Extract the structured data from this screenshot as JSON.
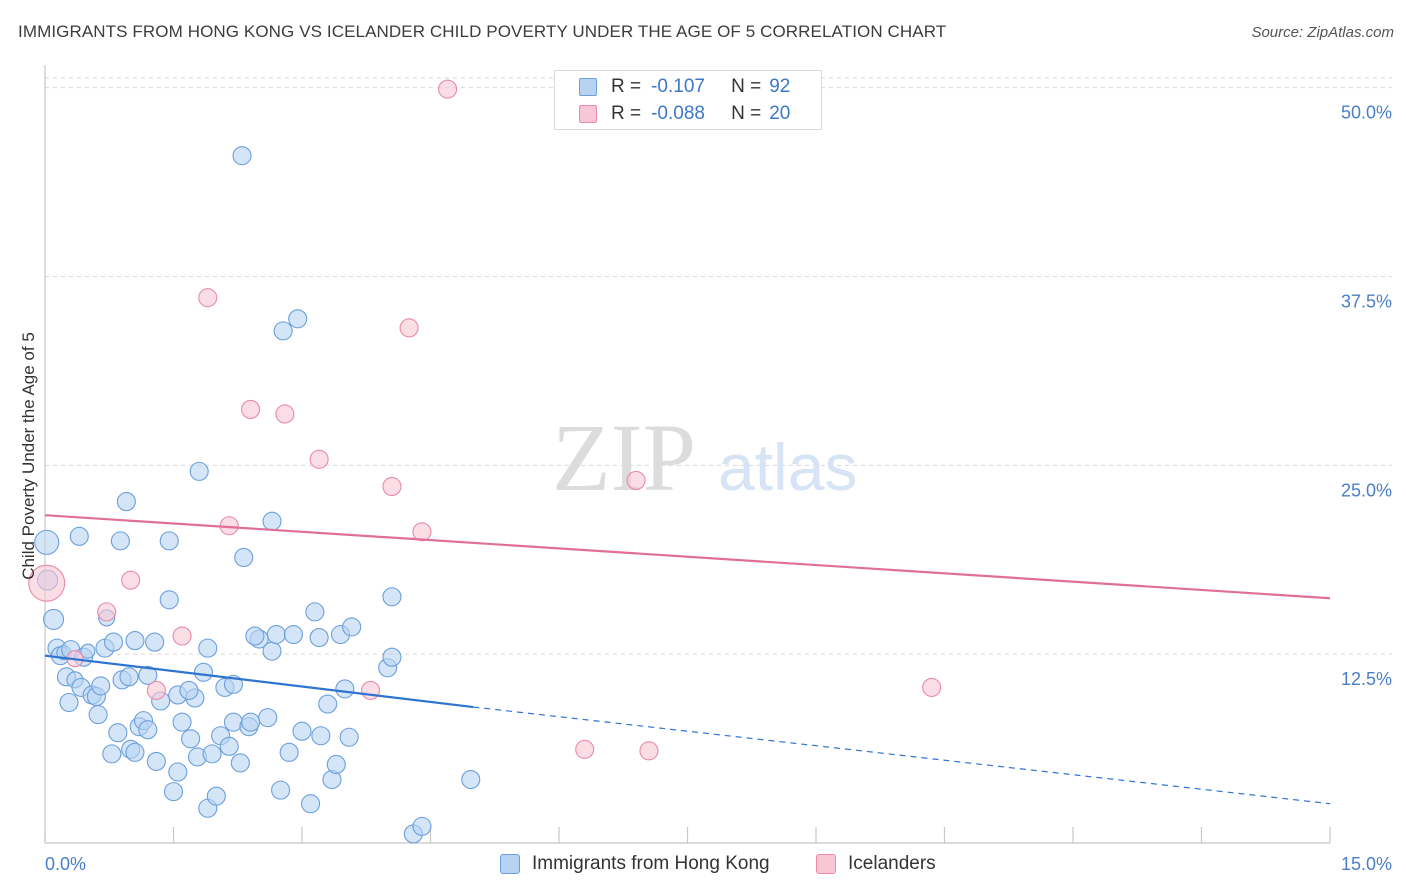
{
  "title": "IMMIGRANTS FROM HONG KONG VS ICELANDER CHILD POVERTY UNDER THE AGE OF 5 CORRELATION CHART",
  "source": "Source: ZipAtlas.com",
  "watermark": {
    "zip": "ZIP",
    "atlas": "atlas"
  },
  "legend": {
    "rows": [
      {
        "r_label": "R =",
        "r_value": "-0.107",
        "n_label": "N =",
        "n_value": "92"
      },
      {
        "r_label": "R =",
        "r_value": "-0.088",
        "n_label": "N =",
        "n_value": "20"
      }
    ]
  },
  "bottom_legend": {
    "series1": "Immigrants from Hong Kong",
    "series2": "Icelanders"
  },
  "colors": {
    "blue_fill": "#b8d3f2",
    "blue_stroke": "#6b9fdc",
    "blue_line": "#2f74d0",
    "pink_fill": "#f8c7d5",
    "pink_stroke": "#e98aa8",
    "pink_line": "#e06f98",
    "accent_text": "#4a7fc8"
  },
  "chart_data": {
    "type": "scatter",
    "title": "IMMIGRANTS FROM HONG KONG VS ICELANDER CHILD POVERTY UNDER THE AGE OF 5 CORRELATION CHART",
    "xlabel": "",
    "ylabel": "Child Poverty Under the Age of 5",
    "xlim": [
      0,
      15
    ],
    "ylim": [
      0,
      51.5
    ],
    "x_tick_labels": [
      "0.0%",
      "15.0%"
    ],
    "y_ticks": [
      12.5,
      25.0,
      37.5,
      50.0
    ],
    "y_tick_labels": [
      "12.5%",
      "25.0%",
      "37.5%",
      "50.0%"
    ],
    "grid": true,
    "legend_position": "top-center",
    "series": [
      {
        "name": "Immigrants from Hong Kong",
        "color": "#6b9fdc",
        "r": -0.107,
        "n": 92,
        "points": [
          [
            0.02,
            19.9,
            24
          ],
          [
            0.03,
            17.4,
            20
          ],
          [
            0.1,
            14.8,
            20
          ],
          [
            0.14,
            12.9,
            18
          ],
          [
            0.18,
            12.4,
            18
          ],
          [
            0.22,
            12.6,
            14
          ],
          [
            0.3,
            12.8,
            18
          ],
          [
            0.4,
            20.3,
            18
          ],
          [
            0.45,
            12.3,
            18
          ],
          [
            0.5,
            12.7,
            14
          ],
          [
            0.25,
            11.0,
            18
          ],
          [
            0.35,
            10.8,
            16
          ],
          [
            0.42,
            10.3,
            18
          ],
          [
            0.55,
            9.8,
            18
          ],
          [
            0.6,
            9.7,
            18
          ],
          [
            0.28,
            9.3,
            18
          ],
          [
            0.62,
            8.5,
            18
          ],
          [
            0.65,
            10.4,
            18
          ],
          [
            0.7,
            12.9,
            18
          ],
          [
            0.72,
            14.9,
            16
          ],
          [
            0.8,
            13.3,
            18
          ],
          [
            0.88,
            20.0,
            18
          ],
          [
            0.95,
            22.6,
            18
          ],
          [
            0.9,
            10.8,
            18
          ],
          [
            0.98,
            11.0,
            18
          ],
          [
            1.05,
            13.4,
            18
          ],
          [
            1.0,
            6.2,
            18
          ],
          [
            0.85,
            7.3,
            18
          ],
          [
            0.78,
            5.9,
            18
          ],
          [
            1.05,
            6.0,
            18
          ],
          [
            1.1,
            7.7,
            18
          ],
          [
            1.15,
            8.1,
            18
          ],
          [
            1.2,
            7.5,
            18
          ],
          [
            1.2,
            11.1,
            18
          ],
          [
            1.28,
            13.3,
            18
          ],
          [
            1.35,
            9.4,
            18
          ],
          [
            1.3,
            5.4,
            18
          ],
          [
            1.45,
            16.1,
            18
          ],
          [
            1.45,
            20.0,
            18
          ],
          [
            1.5,
            3.4,
            18
          ],
          [
            1.55,
            4.7,
            18
          ],
          [
            1.55,
            9.8,
            18
          ],
          [
            1.6,
            8.0,
            18
          ],
          [
            1.7,
            6.9,
            18
          ],
          [
            1.75,
            9.6,
            18
          ],
          [
            1.78,
            5.7,
            18
          ],
          [
            1.68,
            10.1,
            18
          ],
          [
            1.8,
            24.6,
            18
          ],
          [
            1.85,
            11.3,
            18
          ],
          [
            1.9,
            12.9,
            18
          ],
          [
            1.9,
            2.3,
            18
          ],
          [
            1.95,
            5.9,
            18
          ],
          [
            2.0,
            3.1,
            18
          ],
          [
            2.05,
            7.1,
            18
          ],
          [
            2.1,
            10.3,
            18
          ],
          [
            2.15,
            6.4,
            18
          ],
          [
            2.2,
            8.0,
            18
          ],
          [
            2.2,
            10.5,
            18
          ],
          [
            2.28,
            5.3,
            18
          ],
          [
            2.32,
            18.9,
            18
          ],
          [
            2.38,
            7.7,
            18
          ],
          [
            2.4,
            8.0,
            18
          ],
          [
            2.5,
            13.5,
            18
          ],
          [
            2.3,
            45.5,
            18
          ],
          [
            2.45,
            13.7,
            18
          ],
          [
            2.6,
            8.3,
            18
          ],
          [
            2.65,
            12.7,
            18
          ],
          [
            2.65,
            21.3,
            18
          ],
          [
            2.7,
            13.8,
            18
          ],
          [
            2.75,
            3.5,
            18
          ],
          [
            2.78,
            33.9,
            18
          ],
          [
            2.85,
            6.0,
            18
          ],
          [
            2.9,
            13.8,
            18
          ],
          [
            2.95,
            34.7,
            18
          ],
          [
            3.0,
            7.4,
            18
          ],
          [
            3.1,
            2.6,
            18
          ],
          [
            3.15,
            15.3,
            18
          ],
          [
            3.2,
            13.6,
            18
          ],
          [
            3.22,
            7.1,
            18
          ],
          [
            3.3,
            9.2,
            18
          ],
          [
            3.35,
            4.2,
            18
          ],
          [
            3.4,
            5.2,
            18
          ],
          [
            3.45,
            13.8,
            18
          ],
          [
            3.5,
            10.2,
            18
          ],
          [
            3.55,
            7.0,
            18
          ],
          [
            3.58,
            14.3,
            18
          ],
          [
            4.0,
            11.6,
            18
          ],
          [
            4.05,
            12.3,
            18
          ],
          [
            4.05,
            16.3,
            18
          ],
          [
            4.3,
            0.6,
            18
          ],
          [
            4.4,
            1.1,
            18
          ],
          [
            4.97,
            4.2,
            18
          ]
        ],
        "trend": {
          "x1": 0.0,
          "y1": 12.4,
          "x2": 5.0,
          "y2": 9.0,
          "dashed_to_x": 15.0,
          "dashed_to_y": 2.6
        }
      },
      {
        "name": "Icelanders",
        "color": "#e98aa8",
        "r": -0.088,
        "n": 20,
        "points": [
          [
            0.02,
            17.2,
            36
          ],
          [
            0.35,
            12.2,
            16
          ],
          [
            0.72,
            15.3,
            18
          ],
          [
            1.0,
            17.4,
            18
          ],
          [
            1.3,
            10.1,
            18
          ],
          [
            1.6,
            13.7,
            18
          ],
          [
            1.9,
            36.1,
            18
          ],
          [
            2.15,
            21.0,
            18
          ],
          [
            2.4,
            28.7,
            18
          ],
          [
            2.8,
            28.4,
            18
          ],
          [
            3.2,
            25.4,
            18
          ],
          [
            3.8,
            10.1,
            18
          ],
          [
            4.05,
            23.6,
            18
          ],
          [
            4.25,
            34.1,
            18
          ],
          [
            4.4,
            20.6,
            18
          ],
          [
            4.7,
            49.9,
            18
          ],
          [
            6.3,
            6.2,
            18
          ],
          [
            6.9,
            24.0,
            18
          ],
          [
            7.05,
            6.1,
            18
          ],
          [
            10.35,
            10.3,
            18
          ]
        ],
        "trend": {
          "x1": 0.0,
          "y1": 21.7,
          "x2": 15.0,
          "y2": 16.2
        }
      }
    ]
  }
}
